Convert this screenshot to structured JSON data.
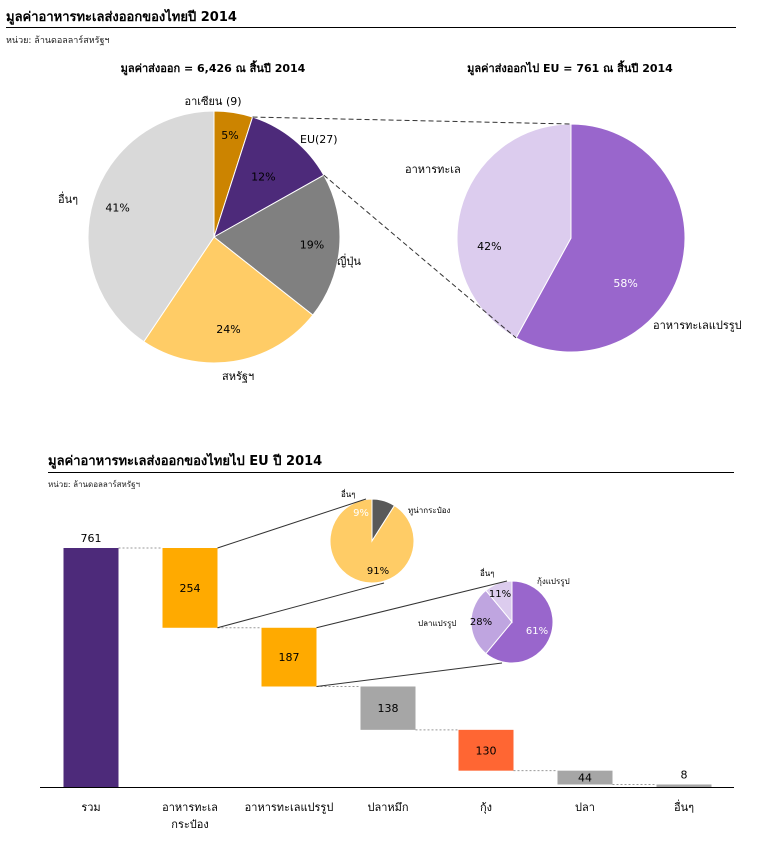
{
  "header": {
    "title": "มูลค่าอาหารทะเลส่งออกของไทยปี 2014",
    "unit": "หน่วย: ล้านดอลลาร์สหรัฐฯ"
  },
  "section2": {
    "title": "มูลค่าอาหารทะเลส่งออกของไทยไป EU ปี 2014",
    "unit": "หน่วย: ล้านดอลลาร์สหรัฐฯ"
  },
  "colors": {
    "asean": "#CC8400",
    "eu": "#4D2A7A",
    "japan": "#808080",
    "usa": "#FFCC66",
    "others": "#D9D9D9",
    "seafood_eu": "#DCCCEE",
    "processed_eu": "#9966CC",
    "total_bar": "#4D2A7A",
    "canned_bar": "#FFAA00",
    "processed_bar": "#FFAA00",
    "squid_bar": "#A6A6A6",
    "shrimp_bar": "#FF6633",
    "fish_bar": "#A6A6A6",
    "other_bar": "#A6A6A6",
    "canned_tuna": "#FFCC66",
    "canned_other": "#595959",
    "proc_shrimp": "#9966CC",
    "proc_fish": "#BFA5E0",
    "proc_other": "#DCCCEE"
  },
  "chart_data": [
    {
      "type": "pie",
      "title": "มูลค่าส่งออก = 6,426 ณ สิ้นปี 2014",
      "slices": [
        {
          "key": "asean",
          "label": "อาเซียน (9)",
          "value": 5,
          "pct_label": "5%"
        },
        {
          "key": "eu",
          "label": "EU(27)",
          "value": 12,
          "pct_label": "12%"
        },
        {
          "key": "japan",
          "label": "ญี่ปุ่น",
          "value": 19,
          "pct_label": "19%"
        },
        {
          "key": "usa",
          "label": "สหรัฐฯ",
          "value": 24,
          "pct_label": "24%"
        },
        {
          "key": "others",
          "label": "อื่นๆ",
          "value": 41,
          "pct_label": "41%"
        }
      ]
    },
    {
      "type": "pie",
      "title": "มูลค่าส่งออกไป EU = 761 ณ สิ้นปี 2014",
      "slices": [
        {
          "key": "processed_eu",
          "label": "อาหารทะเลแปรรูป",
          "value": 58,
          "pct_label": "58%"
        },
        {
          "key": "seafood_eu",
          "label": "อาหารทะเล",
          "value": 42,
          "pct_label": "42%"
        }
      ]
    },
    {
      "type": "bar",
      "subtype": "waterfall",
      "categories": [
        "รวม",
        "อาหารทะเล\nกระป๋อง",
        "อาหารทะเลแปรรูป",
        "ปลาหมึก",
        "กุ้ง",
        "ปลา",
        "อื่นๆ"
      ],
      "values": [
        761,
        254,
        187,
        138,
        130,
        44,
        8
      ],
      "value_labels": [
        "761",
        "254",
        "187",
        "138",
        "130",
        "44",
        "8"
      ],
      "color_keys": [
        "total_bar",
        "canned_bar",
        "processed_bar",
        "squid_bar",
        "shrimp_bar",
        "fish_bar",
        "other_bar"
      ],
      "ylim": [
        0,
        761
      ]
    },
    {
      "type": "pie",
      "slices": [
        {
          "key": "canned_tuna",
          "label": "ทูน่ากระป๋อง",
          "value": 91,
          "pct_label": "91%"
        },
        {
          "key": "canned_other",
          "label": "อื่นๆ",
          "value": 9,
          "pct_label": "9%"
        }
      ]
    },
    {
      "type": "pie",
      "slices": [
        {
          "key": "proc_shrimp",
          "label": "กุ้งแปรรูป",
          "value": 61,
          "pct_label": "61%"
        },
        {
          "key": "proc_fish",
          "label": "ปลาแปรรูป",
          "value": 28,
          "pct_label": "28%"
        },
        {
          "key": "proc_other",
          "label": "อื่นๆ",
          "value": 11,
          "pct_label": "11%"
        }
      ]
    }
  ]
}
